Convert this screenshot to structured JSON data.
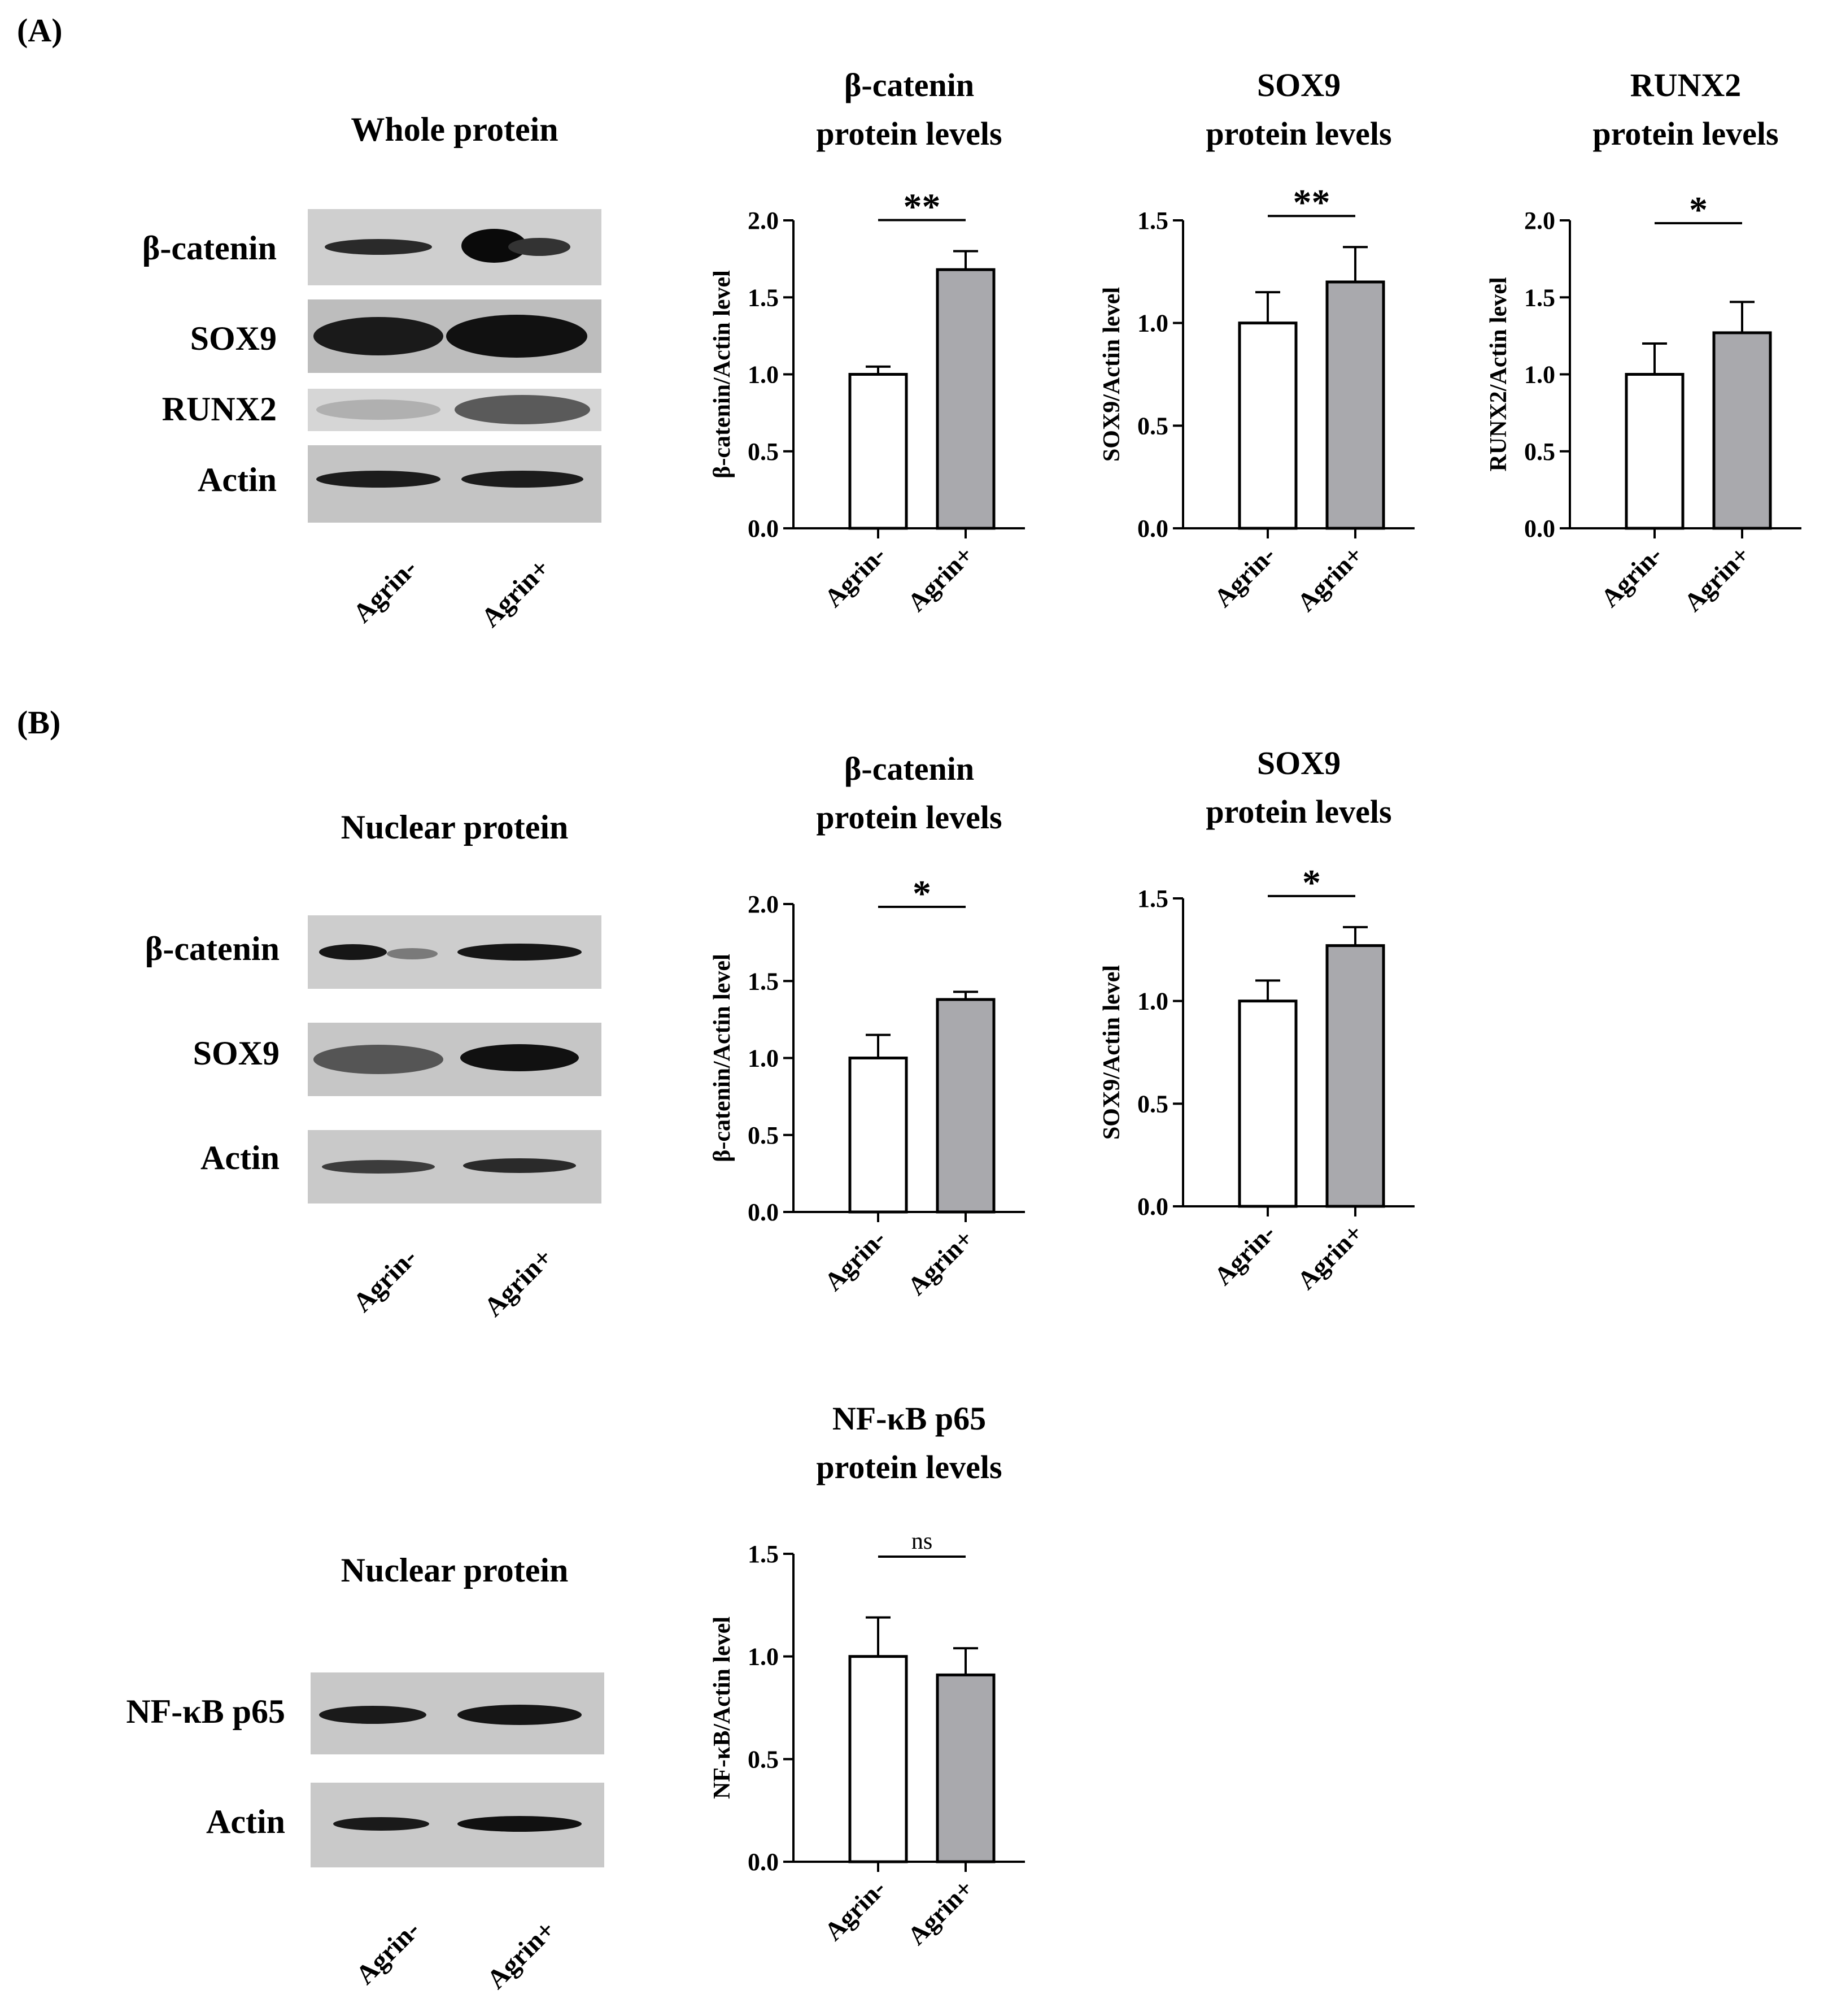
{
  "panels": {
    "a": "(A)",
    "b": "(B)"
  },
  "blots": [
    {
      "title": "Whole protein",
      "bands": [
        "β-catenin",
        "SOX9",
        "RUNX2",
        "Actin"
      ],
      "lanes": [
        "Agrin-",
        "Agrin+"
      ]
    },
    {
      "title": "Nuclear protein",
      "bands": [
        "β-catenin",
        "SOX9",
        "Actin"
      ],
      "lanes": [
        "Agrin-",
        "Agrin+"
      ]
    },
    {
      "title": "Nuclear protein",
      "bands": [
        "NF-κB p65",
        "Actin"
      ],
      "lanes": [
        "Agrin-",
        "Agrin+"
      ]
    }
  ],
  "colors": {
    "agrin_minus_bar": "#ffffff",
    "agrin_plus_bar": "#a9a9ad",
    "blot_background": "#c9c9c9",
    "band": "#161616"
  },
  "chart_data": [
    {
      "type": "bar",
      "title": [
        "β-catenin",
        "protein levels"
      ],
      "ylabel": "β-catenin/Actin level",
      "categories": [
        "Agrin-",
        "Agrin+"
      ],
      "values": [
        1.0,
        1.68
      ],
      "errors": [
        0.05,
        0.12
      ],
      "ylim": [
        0,
        2.0
      ],
      "yticks": [
        "0.0",
        "0.5",
        "1.0",
        "1.5",
        "2.0"
      ],
      "significance": "**",
      "grid": false
    },
    {
      "type": "bar",
      "title": [
        "SOX9",
        "protein levels"
      ],
      "ylabel": "SOX9/Actin level",
      "categories": [
        "Agrin-",
        "Agrin+"
      ],
      "values": [
        1.0,
        1.2
      ],
      "errors": [
        0.15,
        0.17
      ],
      "ylim": [
        0,
        1.5
      ],
      "yticks": [
        "0.0",
        "0.5",
        "1.0",
        "1.5"
      ],
      "significance": "**",
      "grid": false
    },
    {
      "type": "bar",
      "title": [
        "RUNX2",
        "protein levels"
      ],
      "ylabel": "RUNX2/Actin level",
      "categories": [
        "Agrin-",
        "Agrin+"
      ],
      "values": [
        1.0,
        1.27
      ],
      "errors": [
        0.2,
        0.2
      ],
      "ylim": [
        0,
        2.0
      ],
      "yticks": [
        "0.0",
        "0.5",
        "1.0",
        "1.5",
        "2.0"
      ],
      "significance": "*",
      "grid": false
    },
    {
      "type": "bar",
      "title": [
        "β-catenin",
        "protein levels"
      ],
      "ylabel": "β-catenin/Actin level",
      "categories": [
        "Agrin-",
        "Agrin+"
      ],
      "values": [
        1.0,
        1.38
      ],
      "errors": [
        0.15,
        0.05
      ],
      "ylim": [
        0,
        2.0
      ],
      "yticks": [
        "0.0",
        "0.5",
        "1.0",
        "1.5",
        "2.0"
      ],
      "significance": "*",
      "grid": false
    },
    {
      "type": "bar",
      "title": [
        "SOX9",
        "protein levels"
      ],
      "ylabel": "SOX9/Actin level",
      "categories": [
        "Agrin-",
        "Agrin+"
      ],
      "values": [
        1.0,
        1.27
      ],
      "errors": [
        0.1,
        0.09
      ],
      "ylim": [
        0,
        1.5
      ],
      "yticks": [
        "0.0",
        "0.5",
        "1.0",
        "1.5"
      ],
      "significance": "*",
      "grid": false
    },
    {
      "type": "bar",
      "title": [
        "NF-κB p65",
        "protein levels"
      ],
      "ylabel": "NF-κB/Actin level",
      "categories": [
        "Agrin-",
        "Agrin+"
      ],
      "values": [
        1.0,
        0.91
      ],
      "errors": [
        0.19,
        0.13
      ],
      "ylim": [
        0,
        1.5
      ],
      "yticks": [
        "0.0",
        "0.5",
        "1.0",
        "1.5"
      ],
      "significance": "ns",
      "grid": false
    }
  ]
}
